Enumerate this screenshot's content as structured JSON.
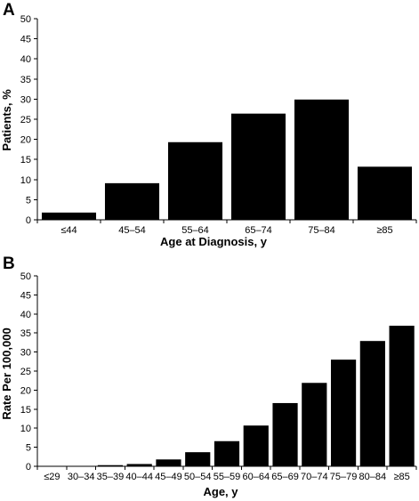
{
  "chart_data": [
    {
      "panel": "A",
      "type": "bar",
      "xlabel": "Age at Diagnosis, y",
      "ylabel": "Patients, %",
      "ylim": [
        0,
        50
      ],
      "yticks": [
        "0",
        "5",
        "10",
        "15",
        "20",
        "25",
        "30",
        "35",
        "40",
        "45",
        "50"
      ],
      "categories": [
        "≤44",
        "45–54",
        "55–64",
        "65–74",
        "75–84",
        "≥85"
      ],
      "values": [
        1.8,
        9.1,
        19.3,
        26.4,
        29.9,
        13.2
      ],
      "grid": false,
      "bar_color": "#000000"
    },
    {
      "panel": "B",
      "type": "bar",
      "xlabel": "Age, y",
      "ylabel": "Rate Per 100,000",
      "ylim": [
        0,
        50
      ],
      "yticks": [
        "0",
        "5",
        "10",
        "15",
        "20",
        "25",
        "30",
        "35",
        "40",
        "45",
        "50"
      ],
      "categories": [
        "≤29",
        "30–34",
        "35–39",
        "40–44",
        "45–49",
        "50–54",
        "55–59",
        "60–64",
        "65–69",
        "70–74",
        "75–79",
        "80–84",
        "≥85"
      ],
      "values": [
        0.05,
        0.1,
        0.3,
        0.6,
        1.8,
        3.7,
        6.6,
        10.7,
        16.6,
        21.9,
        28.0,
        32.9,
        36.9
      ],
      "grid": false,
      "bar_color": "#000000"
    }
  ]
}
